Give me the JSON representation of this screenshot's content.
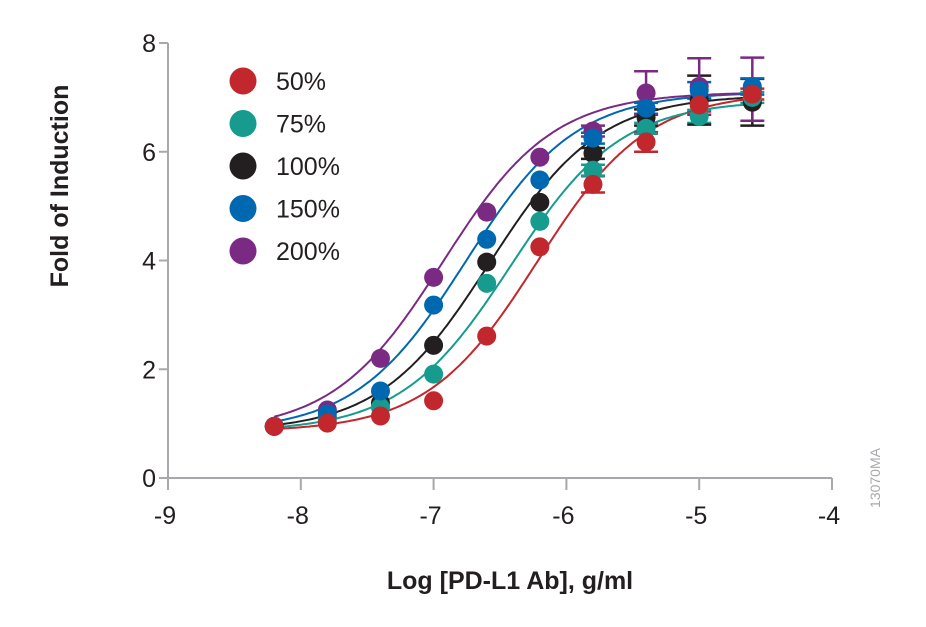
{
  "chart_data": {
    "type": "scatter",
    "title": "",
    "xlabel": "Log [PD-L1 Ab], g/ml",
    "ylabel": "Fold of Induction",
    "xlim": [
      -9,
      -4
    ],
    "ylim": [
      0,
      8
    ],
    "xticks": [
      -9,
      -8,
      -7,
      -6,
      -5,
      -4
    ],
    "yticks": [
      0,
      2,
      4,
      6,
      8
    ],
    "xtick_labels": [
      "-9",
      "-8",
      "-7",
      "-6",
      "-5",
      "-4"
    ],
    "ytick_labels": [
      "0",
      "2",
      "4",
      "6",
      "8"
    ],
    "grid": false,
    "legend_position": "top-left",
    "figure_id": "13070MA",
    "x": [
      -8.2,
      -7.8,
      -7.4,
      -7.0,
      -6.6,
      -6.2,
      -5.8,
      -5.4,
      -5.0,
      -4.6
    ],
    "series": [
      {
        "name": "50%",
        "color": "#c1272d",
        "values": [
          0.95,
          1.01,
          1.14,
          1.42,
          2.61,
          4.25,
          5.4,
          6.18,
          6.86,
          7.06
        ],
        "errors": [
          0,
          0,
          0,
          0,
          0,
          0,
          0.15,
          0.18,
          0.12,
          0.1
        ],
        "fit": {
          "bottom": 0.85,
          "top": 7.1,
          "logEC50": -6.22,
          "hill": 1.05
        }
      },
      {
        "name": "75%",
        "color": "#169b8e",
        "values": [
          0.95,
          1.08,
          1.3,
          1.91,
          3.58,
          4.72,
          5.66,
          6.43,
          6.65,
          7.0
        ],
        "errors": [
          0,
          0,
          0,
          0,
          0,
          0,
          0.1,
          0.1,
          0.12,
          0.1
        ],
        "fit": {
          "bottom": 0.85,
          "top": 6.95,
          "logEC50": -6.42,
          "hill": 1.05
        }
      },
      {
        "name": "100%",
        "color": "#231f20",
        "values": [
          0.95,
          1.1,
          1.38,
          2.44,
          3.97,
          5.07,
          5.97,
          6.63,
          6.95,
          6.91
        ],
        "errors": [
          0,
          0,
          0,
          0,
          0,
          0,
          0.1,
          0.15,
          0.45,
          0.43
        ],
        "fit": {
          "bottom": 0.85,
          "top": 7.05,
          "logEC50": -6.58,
          "hill": 1.05
        }
      },
      {
        "name": "150%",
        "color": "#0068b0",
        "values": [
          0.95,
          1.18,
          1.6,
          3.18,
          4.39,
          5.48,
          6.25,
          6.8,
          7.13,
          7.2
        ],
        "errors": [
          0,
          0,
          0,
          0,
          0,
          0,
          0.1,
          0.1,
          0.15,
          0.15
        ],
        "fit": {
          "bottom": 0.85,
          "top": 7.1,
          "logEC50": -6.76,
          "hill": 1.05
        }
      },
      {
        "name": "200%",
        "color": "#7b2a84",
        "values": [
          0.95,
          1.25,
          2.2,
          3.69,
          4.89,
          5.9,
          6.38,
          7.08,
          7.2,
          7.15
        ],
        "errors": [
          0,
          0,
          0,
          0,
          0,
          0,
          0.1,
          0.4,
          0.52,
          0.58
        ],
        "fit": {
          "bottom": 0.85,
          "top": 7.1,
          "logEC50": -6.93,
          "hill": 1.05
        }
      }
    ]
  }
}
